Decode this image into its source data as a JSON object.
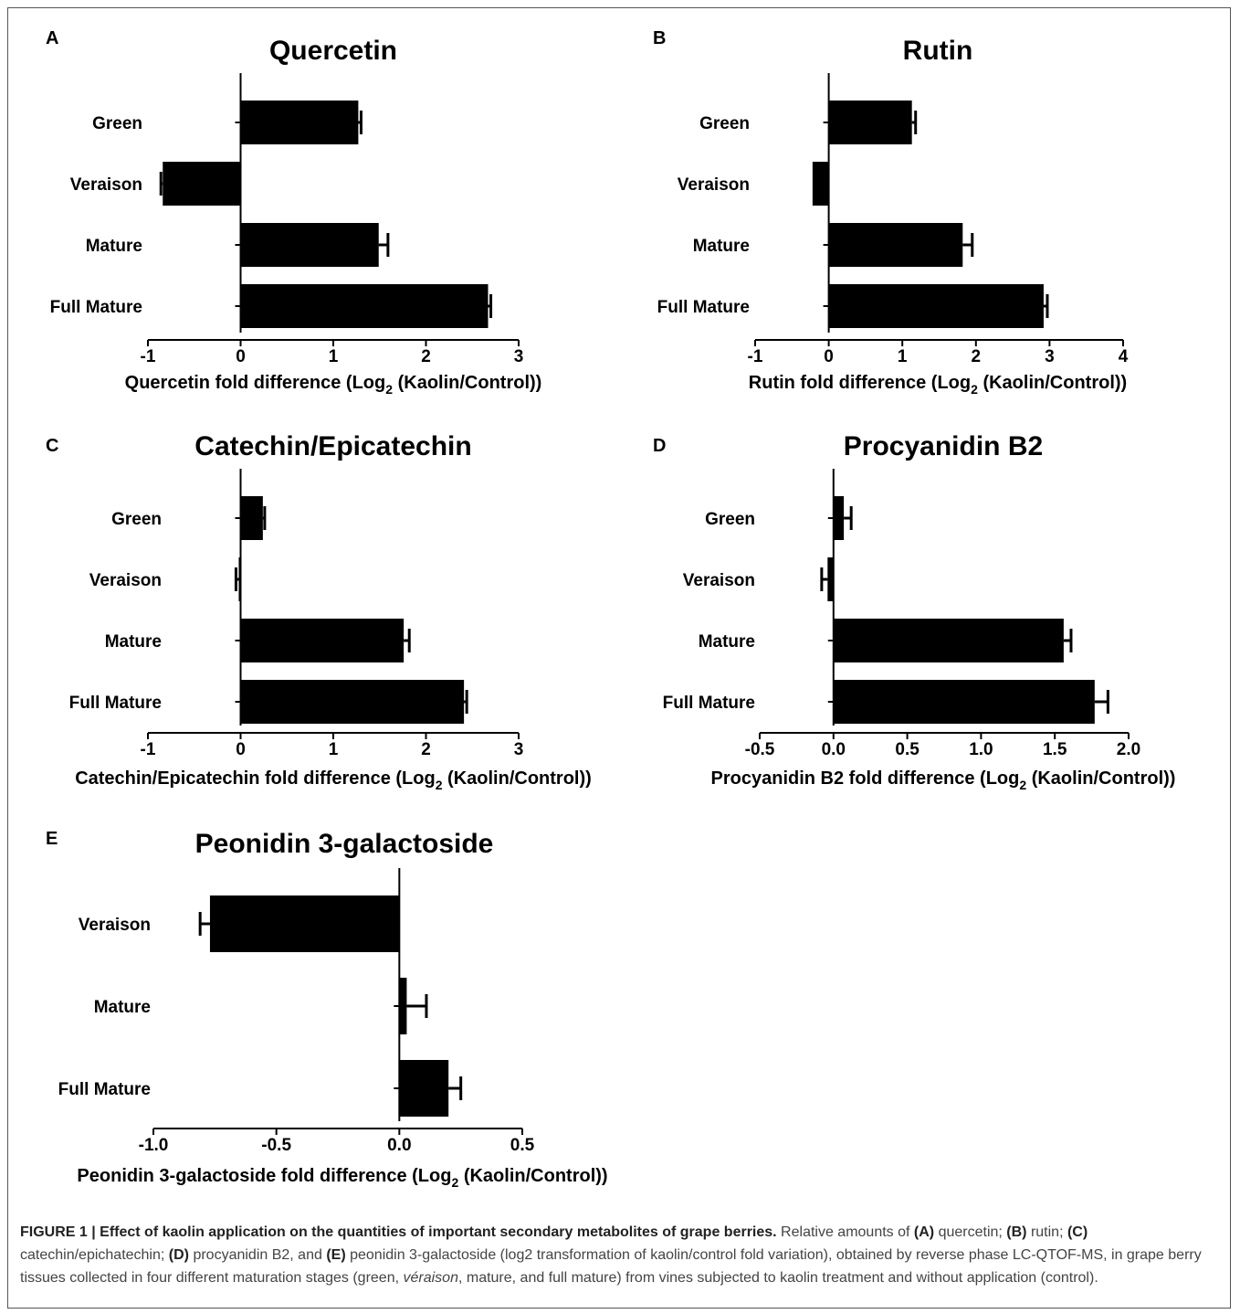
{
  "caption": {
    "figure_label": "FIGURE 1 | Effect of kaolin application on the quantities of important secondary metabolites of grape berries.",
    "t1": " Relative amounts of ",
    "A": "(A)",
    "t2": " quercetin; ",
    "B": "(B)",
    "t3": " rutin; ",
    "C": "(C)",
    "t4": " catechin/epichatechin; ",
    "D": "(D)",
    "t5": " procyanidin B2, and ",
    "E": "(E)",
    "t6": " peonidin 3-galactoside (log2 transformation of kaolin/control fold variation), obtained by reverse phase LC-QTOF-MS, in grape berry tissues collected in four different maturation stages (green, ",
    "italic": "véraison",
    "t7": ", mature, and full mature) from vines subjected to kaolin treatment and without application (control)."
  },
  "chart_data": [
    {
      "type": "bar",
      "orientation": "horizontal",
      "panel": "A",
      "title": "Quercetin",
      "xlabel_prefix": "Quercetin fold difference (Log",
      "xlabel_sub": "2",
      "xlabel_suffix": " (Kaolin/Control))",
      "categories": [
        "Green",
        "Veraison",
        "Mature",
        "Full Mature"
      ],
      "values": [
        1.27,
        -0.84,
        1.49,
        2.67
      ],
      "errors": [
        0.03,
        0.02,
        0.1,
        0.03
      ],
      "xlim": [
        -1,
        3
      ],
      "ticks": [
        -1,
        0,
        1,
        2,
        3
      ],
      "tick_labels": [
        "-1",
        "0",
        "1",
        "2",
        "3"
      ]
    },
    {
      "type": "bar",
      "orientation": "horizontal",
      "panel": "B",
      "title": "Rutin",
      "xlabel_prefix": "Rutin fold difference (Log",
      "xlabel_sub": "2",
      "xlabel_suffix": " (Kaolin/Control))",
      "categories": [
        "Green",
        "Veraison",
        "Mature",
        "Full Mature"
      ],
      "values": [
        1.13,
        -0.22,
        1.82,
        2.92
      ],
      "errors": [
        0.05,
        0.0,
        0.13,
        0.05
      ],
      "xlim": [
        -1,
        4
      ],
      "ticks": [
        -1,
        0,
        1,
        2,
        3,
        4
      ],
      "tick_labels": [
        "-1",
        "0",
        "1",
        "2",
        "3",
        "4"
      ]
    },
    {
      "type": "bar",
      "orientation": "horizontal",
      "panel": "C",
      "title": "Catechin/Epicatechin",
      "xlabel_prefix": "Catechin/Epicatechin fold difference (Log",
      "xlabel_sub": "2",
      "xlabel_suffix": " (Kaolin/Control))",
      "categories": [
        "Green",
        "Veraison",
        "Mature",
        "Full Mature"
      ],
      "values": [
        0.24,
        -0.02,
        1.76,
        2.41
      ],
      "errors": [
        0.02,
        0.03,
        0.06,
        0.03
      ],
      "xlim": [
        -1,
        3
      ],
      "ticks": [
        -1,
        0,
        1,
        2,
        3
      ],
      "tick_labels": [
        "-1",
        "0",
        "1",
        "2",
        "3"
      ]
    },
    {
      "type": "bar",
      "orientation": "horizontal",
      "panel": "D",
      "title": "Procyanidin B2",
      "xlabel_prefix": "Procyanidin B2 fold difference (Log",
      "xlabel_sub": "2",
      "xlabel_suffix": " (Kaolin/Control))",
      "categories": [
        "Green",
        "Veraison",
        "Mature",
        "Full Mature"
      ],
      "values": [
        0.07,
        -0.04,
        1.56,
        1.77
      ],
      "errors": [
        0.05,
        0.04,
        0.05,
        0.09
      ],
      "xlim": [
        -0.5,
        2.0
      ],
      "ticks": [
        -0.5,
        0.0,
        0.5,
        1.0,
        1.5,
        2.0
      ],
      "tick_labels": [
        "-0.5",
        "0.0",
        "0.5",
        "1.0",
        "1.5",
        "2.0"
      ]
    },
    {
      "type": "bar",
      "orientation": "horizontal",
      "panel": "E",
      "title": "Peonidin 3-galactoside",
      "xlabel_prefix": "Peonidin 3-galactoside fold difference (Log",
      "xlabel_sub": "2",
      "xlabel_suffix": " (Kaolin/Control))",
      "categories": [
        "Veraison",
        "Mature",
        "Full Mature"
      ],
      "values": [
        -0.77,
        0.03,
        0.2
      ],
      "errors": [
        0.04,
        0.08,
        0.05
      ],
      "xlim": [
        -1.0,
        0.5
      ],
      "ticks": [
        -1.0,
        -0.5,
        0.0,
        0.5
      ],
      "tick_labels": [
        "-1.0",
        "-0.5",
        "0.0",
        "0.5"
      ]
    }
  ]
}
